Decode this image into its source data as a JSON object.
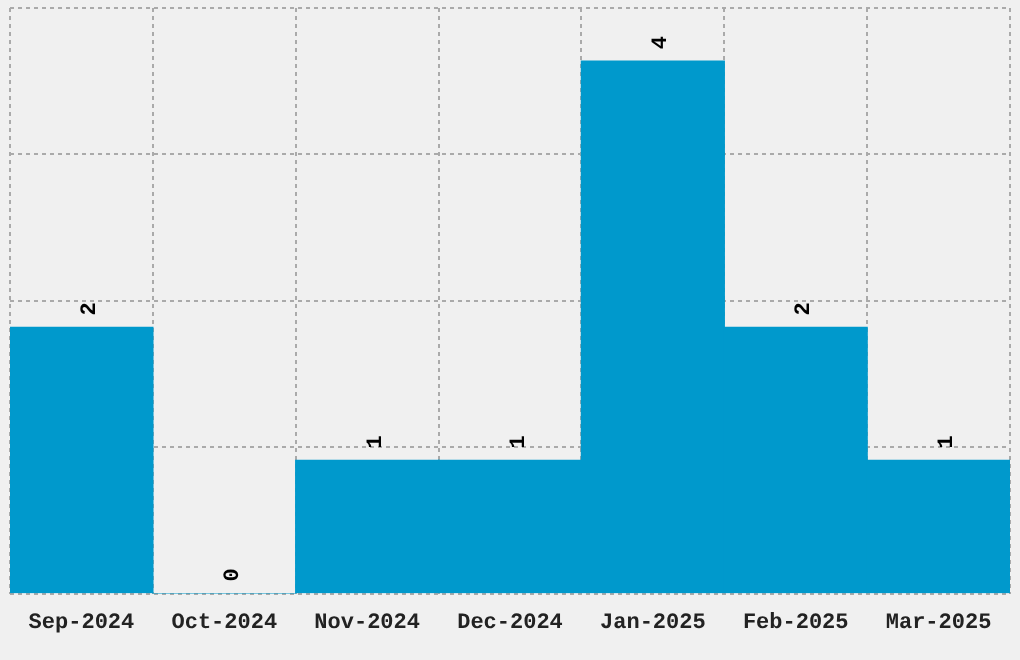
{
  "chart_data": {
    "type": "bar",
    "categories": [
      "Sep-2024",
      "Oct-2024",
      "Nov-2024",
      "Dec-2024",
      "Jan-2025",
      "Feb-2025",
      "Mar-2025"
    ],
    "values": [
      2,
      0,
      1,
      1,
      4,
      2,
      1
    ],
    "color": "#0099cc",
    "ylim": [
      0,
      4.4
    ],
    "yticks": [
      {
        "value": 0,
        "label": null
      },
      {
        "value": 1.1,
        "label": null
      },
      {
        "value": 2.2,
        "label": null
      },
      {
        "value": 3.3,
        "label": null
      },
      {
        "value": 4.4,
        "label": null
      }
    ],
    "tick_labels": "x",
    "grid": true,
    "data_labels": true
  }
}
